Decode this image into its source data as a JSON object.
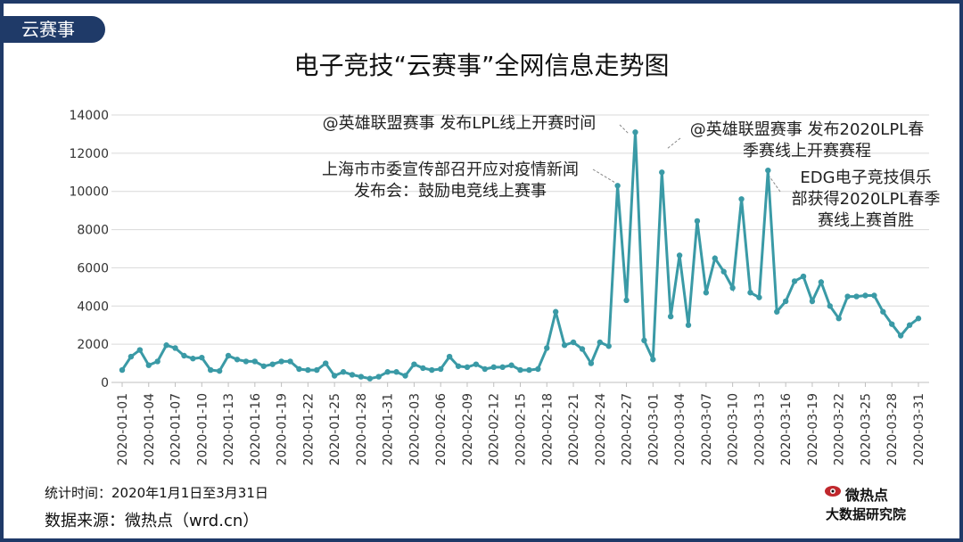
{
  "header": {
    "tag": "云赛事",
    "title": "电子竞技“云赛事”全网信息走势图"
  },
  "footer": {
    "stat_time": "统计时间：2020年1月1日至3月31日",
    "source": "数据来源：微热点（wrd.cn）"
  },
  "logo": {
    "top": "微热点",
    "bottom": "大数据研究院"
  },
  "colors": {
    "line": "#3a9aa6",
    "point": "#3a9aa6",
    "frame": "#1f3a68",
    "grid": "#d9d9d9"
  },
  "chart_data": {
    "type": "line",
    "title": "电子竞技“云赛事”全网信息走势图",
    "ylim": [
      0,
      14000
    ],
    "yticks": [
      "0",
      "2000",
      "4000",
      "6000",
      "8000",
      "10000",
      "12000",
      "14000"
    ],
    "grid": true,
    "x_tick_labels": [
      "2020-01-01",
      "2020-01-04",
      "2020-01-07",
      "2020-01-10",
      "2020-01-13",
      "2020-01-16",
      "2020-01-19",
      "2020-01-22",
      "2020-01-25",
      "2020-01-28",
      "2020-01-31",
      "2020-02-03",
      "2020-02-06",
      "2020-02-09",
      "2020-02-12",
      "2020-02-15",
      "2020-02-18",
      "2020-02-21",
      "2020-02-24",
      "2020-02-27",
      "2020-03-01",
      "2020-03-04",
      "2020-03-07",
      "2020-03-10",
      "2020-03-13",
      "2020-03-16",
      "2020-03-19",
      "2020-03-22",
      "2020-03-25",
      "2020-03-28",
      "2020-03-31"
    ],
    "series": [
      {
        "values": [
          650,
          1350,
          1700,
          900,
          1100,
          1950,
          1800,
          1400,
          1250,
          1300,
          650,
          600,
          1400,
          1200,
          1100,
          1100,
          850,
          950,
          1100,
          1100,
          700,
          650,
          650,
          1000,
          350,
          550,
          400,
          300,
          200,
          300,
          550,
          550,
          350,
          950,
          750,
          650,
          700,
          1350,
          850,
          800,
          950,
          700,
          800,
          800,
          900,
          650,
          650,
          700,
          1800,
          3700,
          1950,
          2100,
          1750,
          1000,
          2100,
          1900,
          10300,
          4300,
          13100,
          2200,
          1200,
          11000,
          3450,
          6650,
          3000,
          8450,
          4700,
          6500,
          5800,
          4950,
          9600,
          4700,
          4450,
          11100,
          3700,
          4250,
          5300,
          5550,
          4250,
          5250,
          4000,
          3350,
          4500,
          4500,
          4550,
          4550,
          3700,
          3050,
          2450,
          3000,
          3350
        ]
      }
    ],
    "annotations": [
      {
        "lines": [
          "上海市市委宣传部召开应对疫情新闻",
          "发布会：鼓励电竞线上赛事"
        ],
        "date": "2020-02-26"
      },
      {
        "lines": [
          "@英雄联盟赛事 发布LPL线上开赛时间"
        ],
        "date": "2020-02-28"
      },
      {
        "lines": [
          "@英雄联盟赛事 发布2020LPL春",
          "季赛线上开赛赛程"
        ],
        "date": "2020-03-02"
      },
      {
        "lines": [
          "EDG电子竞技俱乐",
          "部获得2020LPL春季",
          "赛线上赛首胜"
        ],
        "date": "2020-03-14"
      }
    ]
  }
}
